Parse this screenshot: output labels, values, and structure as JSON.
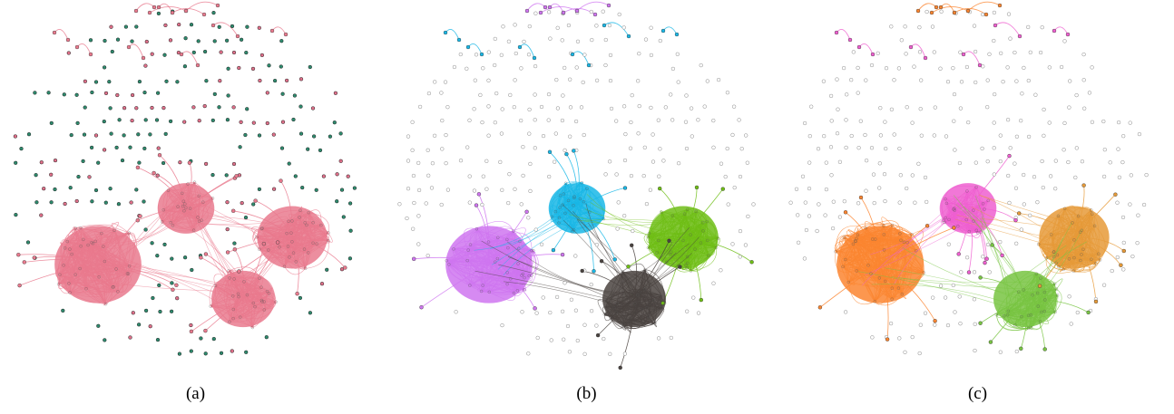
{
  "panels": [
    {
      "id": "a",
      "caption": "(a)",
      "node_colors": {
        "primary": "#2e8b6e",
        "secondary": "#e0708a"
      },
      "clusters": [
        {
          "name": "cluster-large-left",
          "color": "#e97a8e"
        },
        {
          "name": "cluster-top-mid",
          "color": "#e97a8e"
        },
        {
          "name": "cluster-right",
          "color": "#e97a8e"
        },
        {
          "name": "cluster-bottom-mid",
          "color": "#e97a8e"
        }
      ]
    },
    {
      "id": "b",
      "caption": "(b)",
      "node_colors": {
        "primary": "#9e9e9e",
        "secondary": "#9e9e9e"
      },
      "clusters": [
        {
          "name": "cluster-large-left",
          "color": "#cf75f0"
        },
        {
          "name": "cluster-top-mid",
          "color": "#19b7e6"
        },
        {
          "name": "cluster-right",
          "color": "#6fbe16"
        },
        {
          "name": "cluster-bottom-mid",
          "color": "#4a4340"
        }
      ]
    },
    {
      "id": "c",
      "caption": "(c)",
      "node_colors": {
        "primary": "#9e9e9e",
        "secondary": "#9e9e9e"
      },
      "clusters": [
        {
          "name": "cluster-large-left",
          "color": "#fb8530"
        },
        {
          "name": "cluster-top-mid",
          "color": "#ef5fd0"
        },
        {
          "name": "cluster-right",
          "color": "#e69a38"
        },
        {
          "name": "cluster-bottom-mid",
          "color": "#78c442"
        }
      ]
    }
  ]
}
